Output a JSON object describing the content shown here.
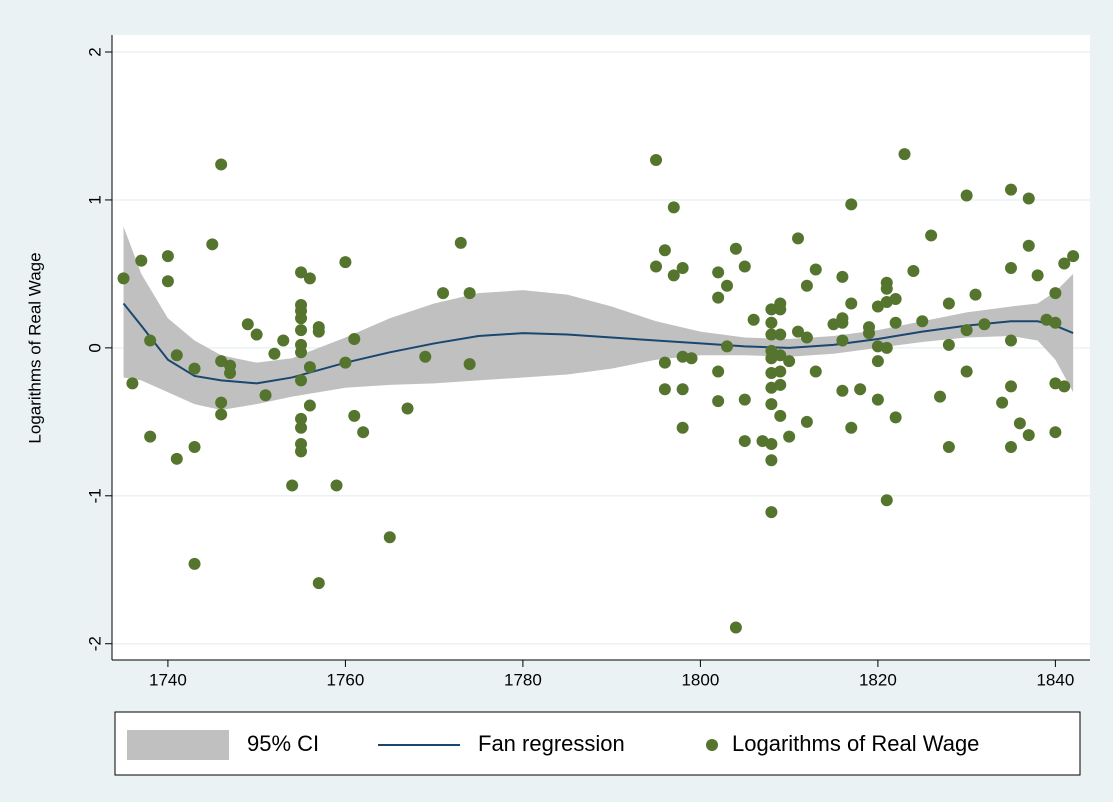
{
  "chart_data": {
    "type": "scatter",
    "y_label": "Logarithms of Real Wage",
    "xlim": [
      1733.7,
      1843.9
    ],
    "ylim": [
      -2.11,
      2.115
    ],
    "xticks": [
      1740,
      1760,
      1780,
      1800,
      1820,
      1840
    ],
    "yticks": [
      -2,
      -1,
      0,
      1,
      2
    ],
    "grid": true,
    "legend": "bottom",
    "series": [
      {
        "name": "95% CI",
        "type": "area",
        "color": "#c0c0c0",
        "x": [
          1735,
          1737,
          1740,
          1743,
          1746,
          1750,
          1754,
          1760,
          1765,
          1770,
          1775,
          1780,
          1785,
          1790,
          1795,
          1800,
          1805,
          1810,
          1815,
          1820,
          1825,
          1830,
          1835,
          1838,
          1840,
          1842
        ],
        "lower": [
          -0.2,
          -0.22,
          -0.3,
          -0.38,
          -0.42,
          -0.38,
          -0.33,
          -0.27,
          -0.25,
          -0.24,
          -0.22,
          -0.2,
          -0.18,
          -0.14,
          -0.08,
          -0.05,
          -0.05,
          -0.06,
          -0.04,
          0.0,
          0.04,
          0.07,
          0.08,
          0.05,
          -0.08,
          -0.3
        ],
        "upper": [
          0.82,
          0.5,
          0.2,
          0.05,
          -0.05,
          -0.1,
          -0.07,
          0.07,
          0.2,
          0.3,
          0.37,
          0.39,
          0.36,
          0.28,
          0.18,
          0.11,
          0.07,
          0.06,
          0.08,
          0.12,
          0.18,
          0.24,
          0.28,
          0.3,
          0.38,
          0.5
        ]
      },
      {
        "name": "Fan regression",
        "type": "line",
        "color": "#1a476f",
        "x": [
          1735,
          1737,
          1740,
          1743,
          1746,
          1750,
          1754,
          1760,
          1765,
          1770,
          1775,
          1780,
          1785,
          1790,
          1795,
          1800,
          1805,
          1810,
          1815,
          1820,
          1825,
          1830,
          1835,
          1838,
          1840,
          1842
        ],
        "values": [
          0.3,
          0.15,
          -0.08,
          -0.19,
          -0.22,
          -0.24,
          -0.2,
          -0.1,
          -0.03,
          0.03,
          0.08,
          0.1,
          0.09,
          0.07,
          0.05,
          0.03,
          0.01,
          0.0,
          0.02,
          0.06,
          0.11,
          0.15,
          0.18,
          0.18,
          0.15,
          0.1
        ]
      },
      {
        "name": "Logarithms of Real Wage",
        "type": "scatter",
        "color": "#55752f",
        "x": [
          1735,
          1736,
          1737,
          1738,
          1738,
          1740,
          1740,
          1741,
          1741,
          1743,
          1743,
          1743,
          1745,
          1746,
          1746,
          1746,
          1746,
          1747,
          1747,
          1749,
          1750,
          1751,
          1752,
          1753,
          1754,
          1755,
          1755,
          1755,
          1755,
          1755,
          1755,
          1755,
          1755,
          1755,
          1755,
          1755,
          1755,
          1756,
          1756,
          1756,
          1757,
          1757,
          1757,
          1759,
          1760,
          1760,
          1761,
          1761,
          1762,
          1765,
          1767,
          1769,
          1771,
          1773,
          1774,
          1774,
          1795,
          1795,
          1796,
          1796,
          1796,
          1797,
          1797,
          1798,
          1798,
          1798,
          1798,
          1799,
          1802,
          1802,
          1802,
          1802,
          1803,
          1803,
          1804,
          1804,
          1805,
          1805,
          1805,
          1806,
          1807,
          1808,
          1808,
          1808,
          1808,
          1808,
          1808,
          1808,
          1808,
          1808,
          1808,
          1808,
          1809,
          1809,
          1809,
          1809,
          1809,
          1809,
          1809,
          1810,
          1810,
          1811,
          1811,
          1812,
          1812,
          1812,
          1813,
          1813,
          1815,
          1816,
          1816,
          1816,
          1816,
          1816,
          1817,
          1817,
          1817,
          1818,
          1819,
          1819,
          1820,
          1820,
          1820,
          1820,
          1821,
          1821,
          1821,
          1821,
          1821,
          1822,
          1822,
          1822,
          1823,
          1824,
          1825,
          1826,
          1827,
          1828,
          1828,
          1828,
          1830,
          1830,
          1830,
          1831,
          1832,
          1834,
          1835,
          1835,
          1835,
          1835,
          1835,
          1836,
          1837,
          1837,
          1837,
          1838,
          1839,
          1840,
          1840,
          1840,
          1840,
          1841,
          1841,
          1842
        ],
        "values": [
          0.47,
          -0.24,
          0.59,
          0.05,
          -0.6,
          0.62,
          0.45,
          -0.05,
          -0.75,
          -0.14,
          -0.67,
          -1.46,
          0.7,
          1.24,
          -0.09,
          -0.37,
          -0.45,
          -0.12,
          -0.17,
          0.16,
          0.09,
          -0.32,
          -0.04,
          0.05,
          -0.93,
          0.51,
          0.29,
          0.25,
          0.2,
          0.12,
          0.02,
          -0.03,
          -0.22,
          -0.48,
          -0.54,
          -0.65,
          -0.7,
          0.47,
          -0.13,
          -0.39,
          0.14,
          0.11,
          -1.59,
          -0.93,
          0.58,
          -0.1,
          0.06,
          -0.46,
          -0.57,
          -1.28,
          -0.41,
          -0.06,
          0.37,
          0.71,
          -0.11,
          0.37,
          1.27,
          0.55,
          0.66,
          -0.1,
          -0.28,
          0.95,
          0.49,
          0.54,
          -0.06,
          -0.28,
          -0.54,
          -0.07,
          0.51,
          0.34,
          -0.16,
          -0.36,
          0.42,
          0.01,
          0.67,
          -1.89,
          0.55,
          -0.35,
          -0.63,
          0.19,
          -0.63,
          0.26,
          0.17,
          0.09,
          -0.02,
          -0.07,
          -0.17,
          -0.27,
          -0.38,
          -0.65,
          -0.76,
          -1.11,
          0.3,
          0.26,
          0.09,
          -0.05,
          -0.16,
          -0.25,
          -0.46,
          -0.09,
          -0.6,
          0.74,
          0.11,
          0.42,
          0.07,
          -0.5,
          0.53,
          -0.16,
          0.16,
          0.2,
          0.17,
          0.48,
          0.05,
          -0.29,
          0.97,
          0.3,
          -0.54,
          -0.28,
          0.14,
          0.1,
          0.28,
          0.01,
          -0.09,
          -0.35,
          0.44,
          0.4,
          0.31,
          0.0,
          -1.03,
          0.33,
          0.17,
          -0.47,
          1.31,
          0.52,
          0.18,
          0.76,
          -0.33,
          0.3,
          0.02,
          -0.67,
          1.03,
          0.12,
          -0.16,
          0.36,
          0.16,
          -0.37,
          1.07,
          0.54,
          0.05,
          -0.26,
          -0.67,
          -0.51,
          1.01,
          0.69,
          -0.59,
          0.49,
          0.19,
          0.37,
          0.17,
          -0.24,
          -0.57,
          0.57,
          -0.26,
          0.62
        ]
      }
    ]
  }
}
